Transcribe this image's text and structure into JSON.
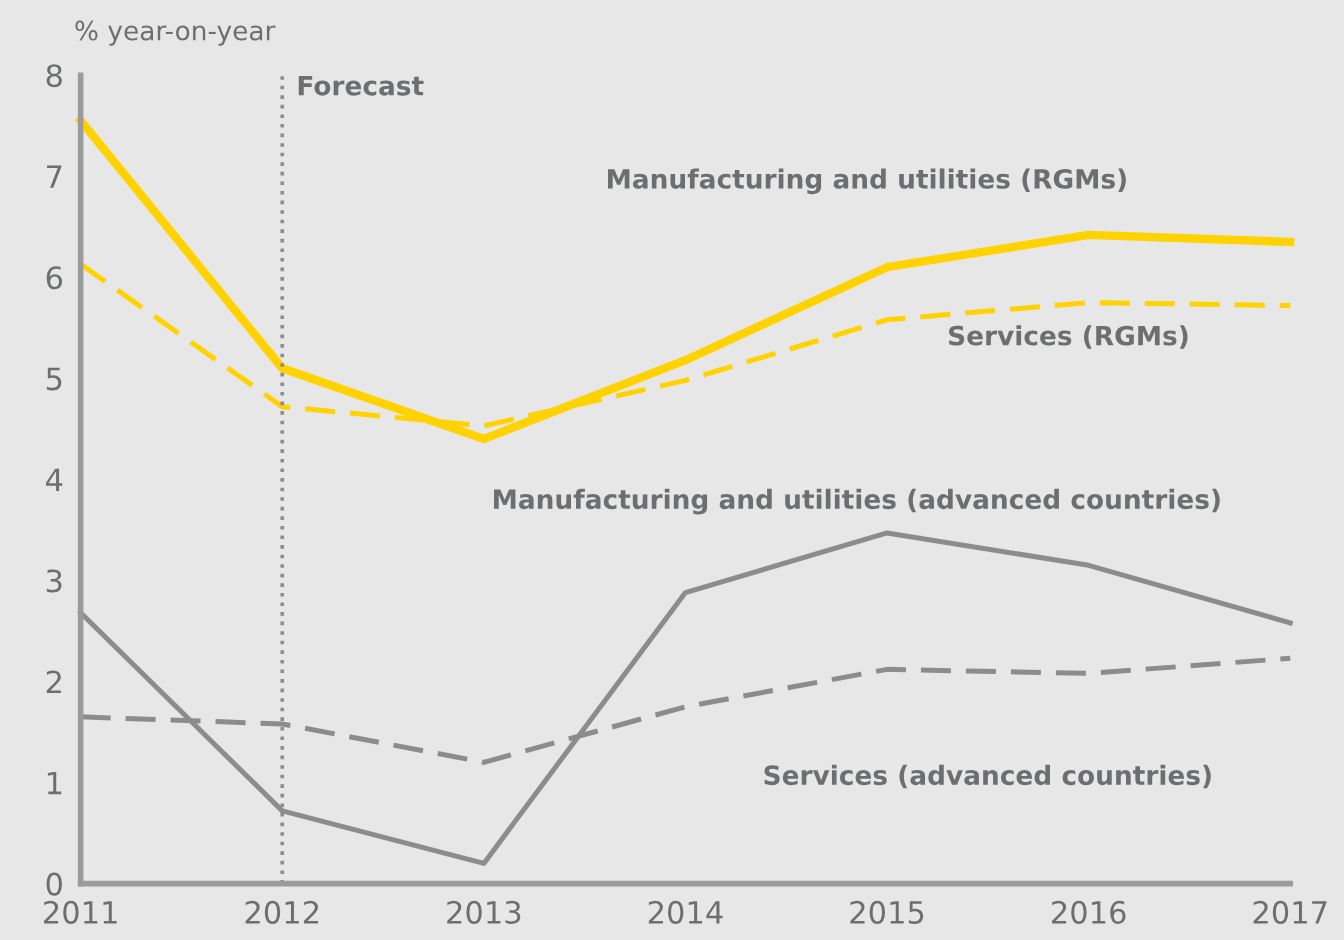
{
  "chart_data": {
    "type": "line",
    "ylabel": "% year-on-year",
    "x": [
      2011,
      2012,
      2013,
      2014,
      2015,
      2016,
      2017
    ],
    "series": [
      {
        "name": "Manufacturing and utilities (RGMs)",
        "color": "#ffd200",
        "line_style": "solid",
        "values": [
          7.55,
          5.1,
          4.4,
          5.18,
          6.1,
          6.42,
          6.35
        ]
      },
      {
        "name": "Services (RGMs)",
        "color": "#ffd200",
        "line_style": "dashed",
        "values": [
          6.13,
          4.72,
          4.53,
          4.98,
          5.58,
          5.75,
          5.72
        ]
      },
      {
        "name": "Manufacturing and utilities (advanced countries)",
        "color": "#8c8c8c",
        "line_style": "solid",
        "values": [
          2.68,
          0.72,
          0.2,
          2.88,
          3.47,
          3.15,
          2.58
        ]
      },
      {
        "name": "Services (advanced countries)",
        "color": "#8c8c8c",
        "line_style": "dashed",
        "values": [
          1.65,
          1.58,
          1.2,
          1.75,
          2.12,
          2.08,
          2.23
        ]
      }
    ],
    "xlim": [
      2011,
      2017
    ],
    "xticks": [
      2011,
      2012,
      2013,
      2014,
      2015,
      2016,
      2017
    ],
    "ylim": [
      0,
      8
    ],
    "yticks": [
      0,
      1,
      2,
      3,
      4,
      5,
      6,
      7,
      8
    ],
    "ref_lines": [
      {
        "axis": "x",
        "value": 2012,
        "label": "Forecast",
        "color": "#8c8c8c",
        "line_style": "dotted"
      }
    ],
    "grid": false,
    "legend": false,
    "marker": "none"
  }
}
